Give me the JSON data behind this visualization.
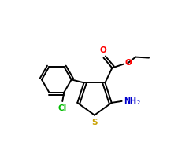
{
  "bg_color": "#ffffff",
  "bond_color": "#000000",
  "S_color": "#c8a000",
  "N_color": "#0000cd",
  "O_color": "#ff0000",
  "Cl_color": "#00bb00",
  "lw": 1.4,
  "fs": 7.5,
  "xlim": [
    0.0,
    1.0
  ],
  "ylim": [
    0.0,
    1.0
  ]
}
